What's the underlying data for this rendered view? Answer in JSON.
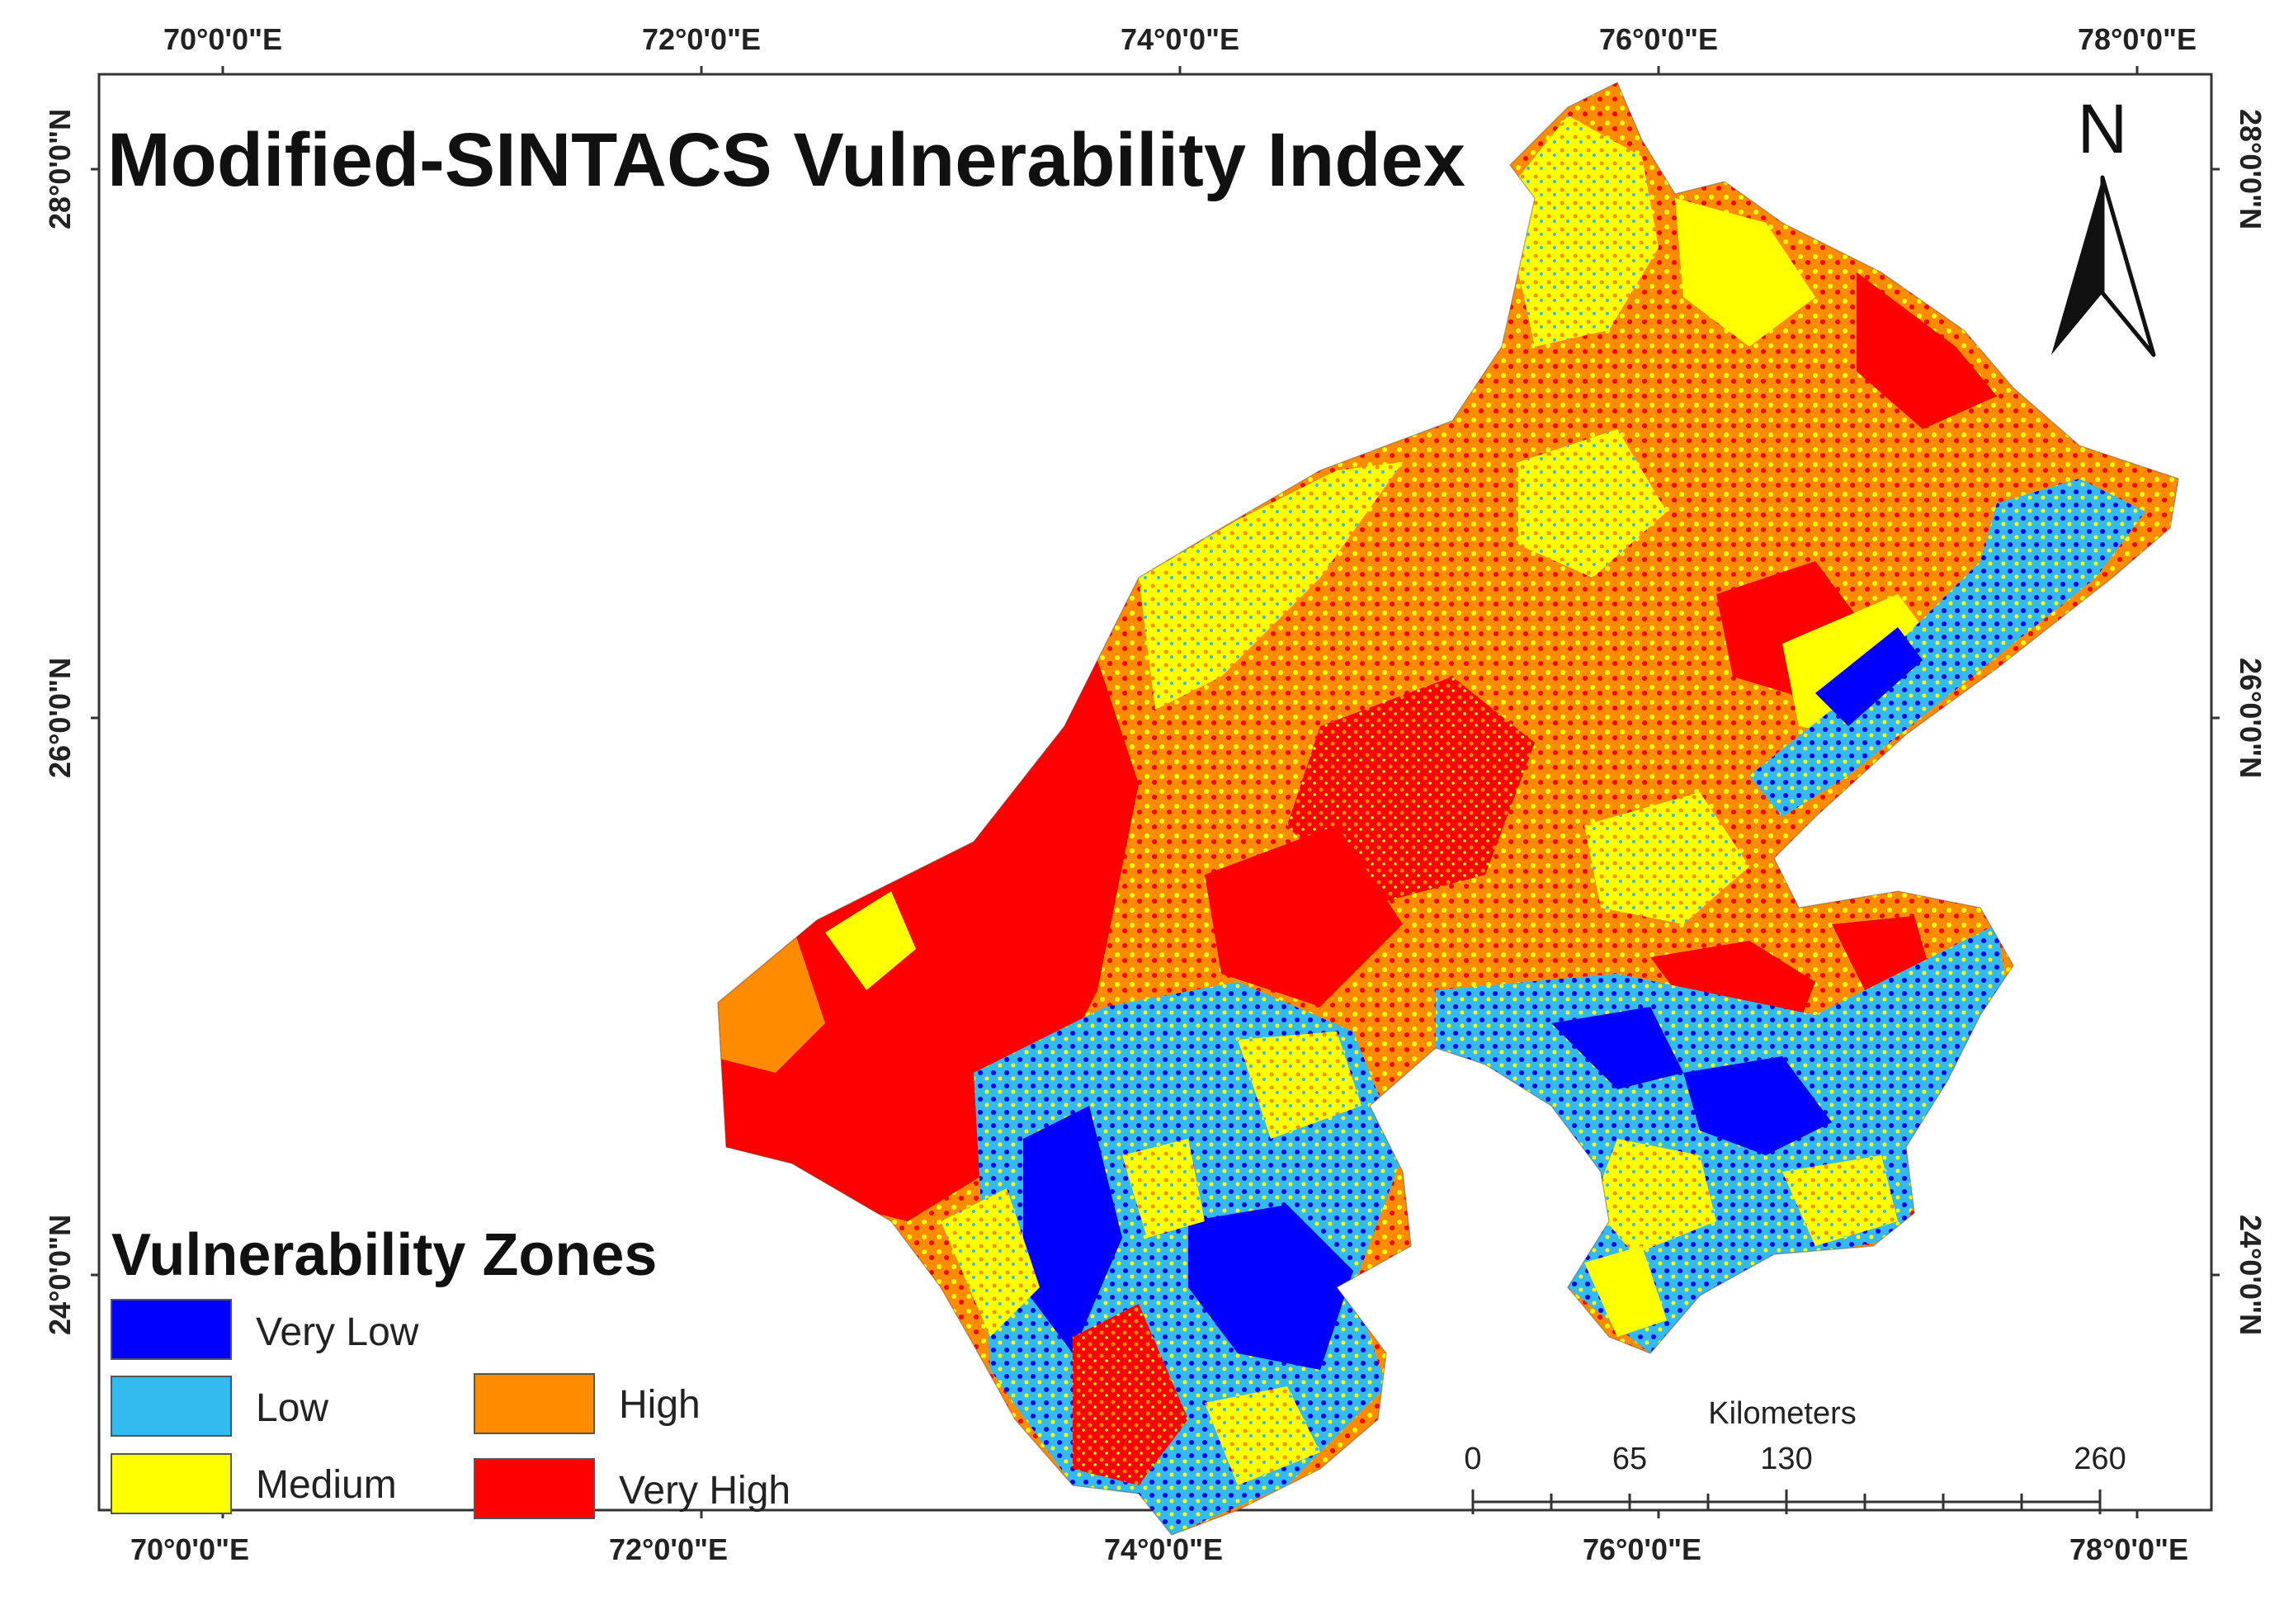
{
  "title": "Modified-SINTACS Vulnerability Index",
  "axes": {
    "top_labels": [
      "70°0'0\"E",
      "72°0'0\"E",
      "74°0'0\"E",
      "76°0'0\"E",
      "78°0'0\"E"
    ],
    "bottom_labels": [
      "70°0'0\"E",
      "72°0'0\"E",
      "74°0'0\"E",
      "76°0'0\"E",
      "78°0'0\"E"
    ],
    "left_labels": [
      "28°0'0\"N",
      "26°0'0\"N",
      "24°0'0\"N"
    ],
    "right_labels": [
      "28°0'0\"N",
      "26°0'0\"N",
      "24°0'0\"N"
    ]
  },
  "legend": {
    "title": "Vulnerability Zones",
    "items": [
      {
        "label": "Very Low",
        "color": "#0000ff"
      },
      {
        "label": "Low",
        "color": "#33bbf0"
      },
      {
        "label": "Medium",
        "color": "#ffff00"
      },
      {
        "label": "High",
        "color": "#ff8c00"
      },
      {
        "label": "Very High",
        "color": "#ff0000"
      }
    ]
  },
  "scale_bar": {
    "unit": "Kilometers",
    "labels": [
      "0",
      "65",
      "130",
      "260"
    ]
  },
  "north_arrow": {
    "label": "N",
    "icon": "north-arrow-icon"
  }
}
